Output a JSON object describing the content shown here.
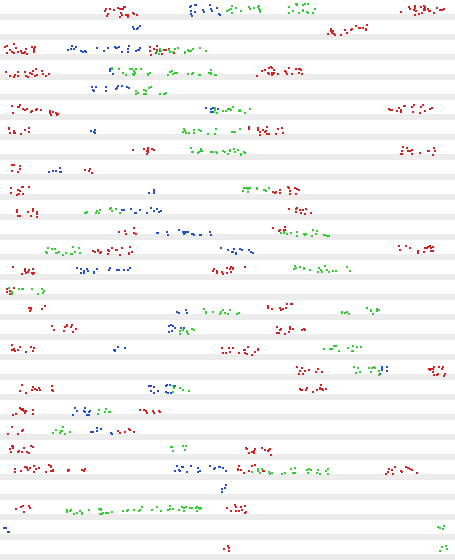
{
  "chart_data": {
    "type": "scatter",
    "title": "",
    "xlabel": "",
    "ylabel": "",
    "legend": "none",
    "grid": false,
    "series": [
      {
        "color": "#d62020",
        "clusters": [
          [
            115,
            10,
            14,
            12
          ],
          [
            128,
            14,
            8,
            6
          ],
          [
            417,
            10,
            18,
            10
          ],
          [
            433,
            8,
            10,
            8
          ],
          [
            18,
            48,
            14,
            10
          ],
          [
            30,
            48,
            10,
            6
          ],
          [
            160,
            50,
            14,
            10
          ],
          [
            338,
            30,
            14,
            8
          ],
          [
            360,
            28,
            12,
            8
          ],
          [
            20,
            72,
            16,
            8
          ],
          [
            40,
            72,
            10,
            6
          ],
          [
            285,
            70,
            24,
            8
          ],
          [
            265,
            72,
            10,
            6
          ],
          [
            25,
            108,
            16,
            8
          ],
          [
            45,
            112,
            12,
            6
          ],
          [
            415,
            108,
            16,
            8
          ],
          [
            395,
            110,
            8,
            6
          ],
          [
            20,
            130,
            12,
            8
          ],
          [
            265,
            130,
            20,
            8
          ],
          [
            415,
            150,
            20,
            8
          ],
          [
            140,
            150,
            14,
            8
          ],
          [
            12,
            168,
            8,
            8
          ],
          [
            90,
            170,
            6,
            6
          ],
          [
            20,
            190,
            12,
            8
          ],
          [
            285,
            190,
            16,
            8
          ],
          [
            25,
            212,
            14,
            8
          ],
          [
            300,
            210,
            12,
            8
          ],
          [
            125,
            230,
            10,
            6
          ],
          [
            275,
            228,
            10,
            6
          ],
          [
            110,
            250,
            22,
            8
          ],
          [
            415,
            248,
            20,
            8
          ],
          [
            20,
            270,
            14,
            8
          ],
          [
            230,
            270,
            18,
            8
          ],
          [
            8,
            290,
            6,
            8
          ],
          [
            40,
            308,
            12,
            6
          ],
          [
            280,
            306,
            14,
            8
          ],
          [
            65,
            328,
            14,
            8
          ],
          [
            290,
            330,
            16,
            8
          ],
          [
            20,
            348,
            14,
            8
          ],
          [
            240,
            350,
            20,
            8
          ],
          [
            310,
            370,
            14,
            8
          ],
          [
            430,
            370,
            14,
            10
          ],
          [
            35,
            388,
            18,
            8
          ],
          [
            315,
            388,
            16,
            8
          ],
          [
            20,
            410,
            14,
            8
          ],
          [
            150,
            410,
            14,
            6
          ],
          [
            15,
            430,
            8,
            8
          ],
          [
            125,
            430,
            10,
            6
          ],
          [
            25,
            448,
            16,
            8
          ],
          [
            255,
            450,
            16,
            8
          ],
          [
            30,
            468,
            24,
            8
          ],
          [
            75,
            470,
            10,
            6
          ],
          [
            250,
            468,
            14,
            8
          ],
          [
            400,
            470,
            18,
            8
          ],
          [
            20,
            508,
            10,
            6
          ],
          [
            235,
            508,
            14,
            8
          ],
          [
            225,
            548,
            4,
            8
          ]
        ]
      },
      {
        "color": "#2050d0",
        "clusters": [
          [
            205,
            10,
            16,
            12
          ],
          [
            137,
            28,
            6,
            8
          ],
          [
            100,
            48,
            40,
            6
          ],
          [
            110,
            70,
            6,
            6
          ],
          [
            108,
            88,
            20,
            6
          ],
          [
            205,
            110,
            12,
            6
          ],
          [
            90,
            130,
            6,
            6
          ],
          [
            55,
            170,
            10,
            6
          ],
          [
            150,
            190,
            6,
            6
          ],
          [
            140,
            210,
            20,
            6
          ],
          [
            180,
            232,
            30,
            6
          ],
          [
            240,
            250,
            20,
            6
          ],
          [
            100,
            270,
            30,
            6
          ],
          [
            180,
            310,
            6,
            6
          ],
          [
            175,
            328,
            10,
            8
          ],
          [
            120,
            348,
            8,
            6
          ],
          [
            380,
            370,
            8,
            8
          ],
          [
            160,
            388,
            16,
            8
          ],
          [
            80,
            410,
            12,
            8
          ],
          [
            100,
            430,
            12,
            6
          ],
          [
            200,
            468,
            30,
            6
          ],
          [
            225,
            488,
            4,
            8
          ],
          [
            6,
            528,
            4,
            8
          ]
        ]
      },
      {
        "color": "#30cc30",
        "clusters": [
          [
            240,
            8,
            20,
            8
          ],
          [
            300,
            8,
            16,
            10
          ],
          [
            185,
            50,
            30,
            6
          ],
          [
            130,
            70,
            20,
            8
          ],
          [
            190,
            72,
            30,
            6
          ],
          [
            150,
            90,
            16,
            8
          ],
          [
            230,
            110,
            20,
            8
          ],
          [
            210,
            130,
            30,
            6
          ],
          [
            220,
            150,
            30,
            8
          ],
          [
            255,
            190,
            16,
            8
          ],
          [
            100,
            210,
            20,
            6
          ],
          [
            60,
            250,
            20,
            8
          ],
          [
            310,
            232,
            30,
            6
          ],
          [
            320,
            268,
            30,
            6
          ],
          [
            28,
            290,
            20,
            6
          ],
          [
            220,
            310,
            20,
            6
          ],
          [
            360,
            310,
            20,
            6
          ],
          [
            185,
            330,
            10,
            8
          ],
          [
            340,
            348,
            20,
            6
          ],
          [
            365,
            370,
            14,
            8
          ],
          [
            180,
            388,
            10,
            6
          ],
          [
            100,
            410,
            10,
            6
          ],
          [
            60,
            430,
            10,
            8
          ],
          [
            175,
            448,
            10,
            6
          ],
          [
            290,
            470,
            40,
            6
          ],
          [
            100,
            510,
            40,
            6
          ],
          [
            160,
            508,
            40,
            6
          ],
          [
            440,
            548,
            6,
            8
          ],
          [
            440,
            528,
            4,
            6
          ]
        ]
      }
    ]
  }
}
